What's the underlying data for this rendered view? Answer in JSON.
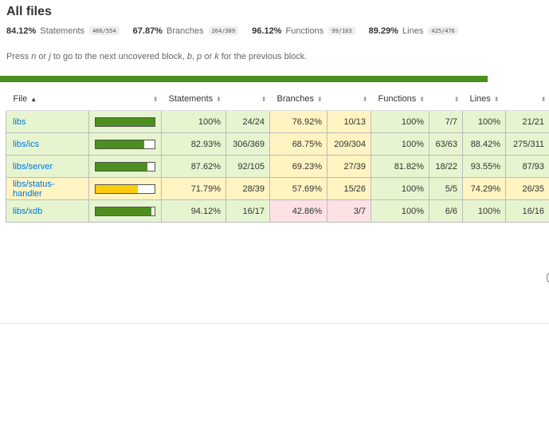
{
  "page": {
    "title": "All files",
    "hint": {
      "prefix": "Press ",
      "key_next_1": "n",
      "or_1": " or ",
      "key_next_2": "j",
      "middle": " to go to the next uncovered block, ",
      "key_prev_1": "b",
      "sep": ", ",
      "key_prev_2": "p",
      "or_2": " or ",
      "key_prev_3": "k",
      "suffix": " for the previous block."
    }
  },
  "summary": [
    {
      "pct": "84.12%",
      "label": "Statements",
      "fraction": "466/554"
    },
    {
      "pct": "67.87%",
      "label": "Branches",
      "fraction": "264/389"
    },
    {
      "pct": "96.12%",
      "label": "Functions",
      "fraction": "99/103"
    },
    {
      "pct": "89.29%",
      "label": "Lines",
      "fraction": "425/476"
    }
  ],
  "colors": {
    "high": "#e6f5d0",
    "medium": "#fff4c2",
    "low": "#fce1e5",
    "bar_high": "#4d8f1e",
    "bar_medium": "#f9cd0b",
    "link": "#0074d9"
  },
  "table": {
    "headers": {
      "file": "File",
      "file_sort": "▲",
      "sorter": "⬍",
      "statements": "Statements",
      "branches": "Branches",
      "functions": "Functions",
      "lines": "Lines"
    },
    "rows": [
      {
        "file": "libs",
        "level": "high",
        "bar_pct": 100,
        "stmt_pct": "100%",
        "stmt_frac": "24/24",
        "stmt_level": "high",
        "br_pct": "76.92%",
        "br_frac": "10/13",
        "br_level": "medium",
        "fn_pct": "100%",
        "fn_frac": "7/7",
        "fn_level": "high",
        "ln_pct": "100%",
        "ln_frac": "21/21",
        "ln_level": "high"
      },
      {
        "file": "libs/ics",
        "level": "high",
        "bar_pct": 82.93,
        "stmt_pct": "82.93%",
        "stmt_frac": "306/369",
        "stmt_level": "high",
        "br_pct": "68.75%",
        "br_frac": "209/304",
        "br_level": "medium",
        "fn_pct": "100%",
        "fn_frac": "63/63",
        "fn_level": "high",
        "ln_pct": "88.42%",
        "ln_frac": "275/311",
        "ln_level": "high"
      },
      {
        "file": "libs/server",
        "level": "high",
        "bar_pct": 87.62,
        "stmt_pct": "87.62%",
        "stmt_frac": "92/105",
        "stmt_level": "high",
        "br_pct": "69.23%",
        "br_frac": "27/39",
        "br_level": "medium",
        "fn_pct": "81.82%",
        "fn_frac": "18/22",
        "fn_level": "high",
        "ln_pct": "93.55%",
        "ln_frac": "87/93",
        "ln_level": "high"
      },
      {
        "file": "libs/status-handler",
        "level": "medium",
        "bar_pct": 71.79,
        "stmt_pct": "71.79%",
        "stmt_frac": "28/39",
        "stmt_level": "medium",
        "br_pct": "57.69%",
        "br_frac": "15/26",
        "br_level": "medium",
        "fn_pct": "100%",
        "fn_frac": "5/5",
        "fn_level": "high",
        "ln_pct": "74.29%",
        "ln_frac": "26/35",
        "ln_level": "medium"
      },
      {
        "file": "libs/xdb",
        "level": "high",
        "bar_pct": 94.12,
        "stmt_pct": "94.12%",
        "stmt_frac": "16/17",
        "stmt_level": "high",
        "br_pct": "42.86%",
        "br_frac": "3/7",
        "br_level": "low",
        "fn_pct": "100%",
        "fn_frac": "6/6",
        "fn_level": "high",
        "ln_pct": "100%",
        "ln_frac": "16/16",
        "ln_level": "high"
      }
    ]
  }
}
